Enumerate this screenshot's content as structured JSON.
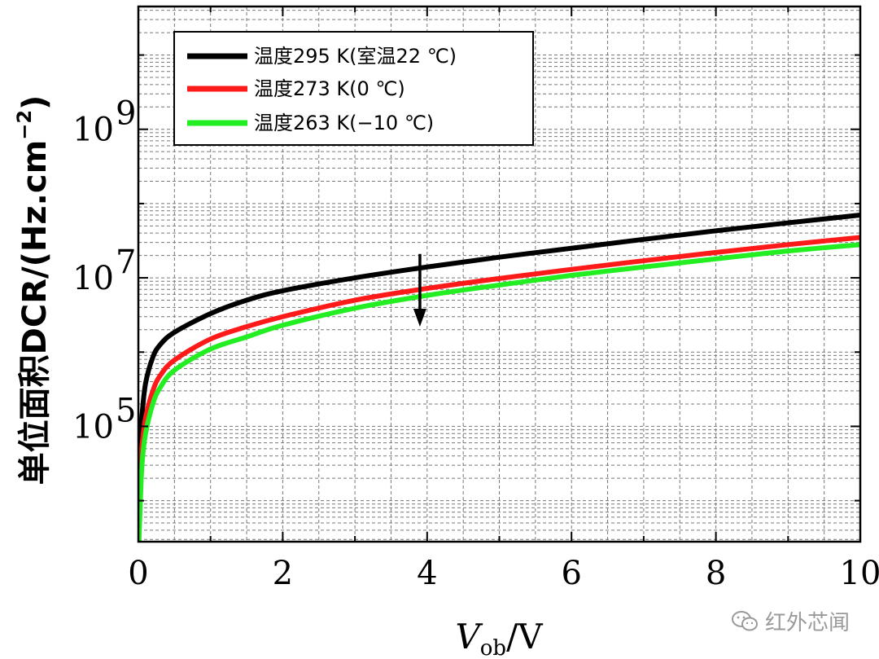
{
  "chart_data": {
    "type": "line",
    "xlabel": "V",
    "xlabel_sub": "ob",
    "xlabel_unit": "/V",
    "ylabel": "单位面积DCR/(Hz.cm",
    "ylabel_sup": "−2",
    "ylabel_tail": ")",
    "y_scale": "log",
    "xlim": [
      0,
      10
    ],
    "ylim": [
      2800,
      45000000000
    ],
    "x_ticks": [
      "0",
      "2",
      "4",
      "6",
      "8",
      "10"
    ],
    "y_ticks": [
      {
        "base": "10",
        "exp": "5",
        "value": 100000
      },
      {
        "base": "10",
        "exp": "7",
        "value": 10000000
      },
      {
        "base": "10",
        "exp": "9",
        "value": 1000000000
      }
    ],
    "grid": true,
    "legend_position": "top-left",
    "series": [
      {
        "name": "温度295 K(室温22 ℃)",
        "color": "#000000",
        "x": [
          0.02,
          0.05,
          0.1,
          0.2,
          0.3,
          0.5,
          1,
          1.5,
          2,
          3,
          4,
          5,
          6,
          7,
          8,
          9,
          10
        ],
        "y": [
          60000,
          140000,
          380000,
          850000,
          1250000,
          1850000,
          3300000,
          5000000,
          6700000,
          10000000,
          14000000,
          19000000,
          25000000,
          33000000,
          43000000,
          55000000,
          70000000
        ]
      },
      {
        "name": "温度273 K(0 ℃)",
        "color": "#ff1a1a",
        "x": [
          0.02,
          0.05,
          0.1,
          0.2,
          0.3,
          0.5,
          1,
          1.5,
          2,
          3,
          4,
          5,
          6,
          7,
          8,
          9,
          10
        ],
        "y": [
          25000,
          55000,
          130000,
          300000,
          480000,
          780000,
          1500000,
          2200000,
          3000000,
          5000000,
          7200000,
          9800000,
          13000000,
          17000000,
          22000000,
          28000000,
          35000000
        ]
      },
      {
        "name": "温度263 K(−10 ℃)",
        "color": "#22ee22",
        "x": [
          0.02,
          0.05,
          0.1,
          0.2,
          0.3,
          0.5,
          1,
          1.5,
          2,
          3,
          4,
          5,
          6,
          7,
          8,
          9,
          10
        ],
        "y": [
          6000,
          30000,
          80000,
          200000,
          330000,
          570000,
          1100000,
          1600000,
          2300000,
          3900000,
          5800000,
          8000000,
          10800000,
          14000000,
          18000000,
          23000000,
          28000000
        ]
      }
    ],
    "annotations": [
      {
        "type": "arrow",
        "direction": "down",
        "x": 3.9,
        "y_from": 21000000,
        "y_to": 2200000
      }
    ]
  },
  "watermark": {
    "text": "红外芯闻",
    "icon": "wechat-icon",
    "color": "#9a9a9a"
  }
}
